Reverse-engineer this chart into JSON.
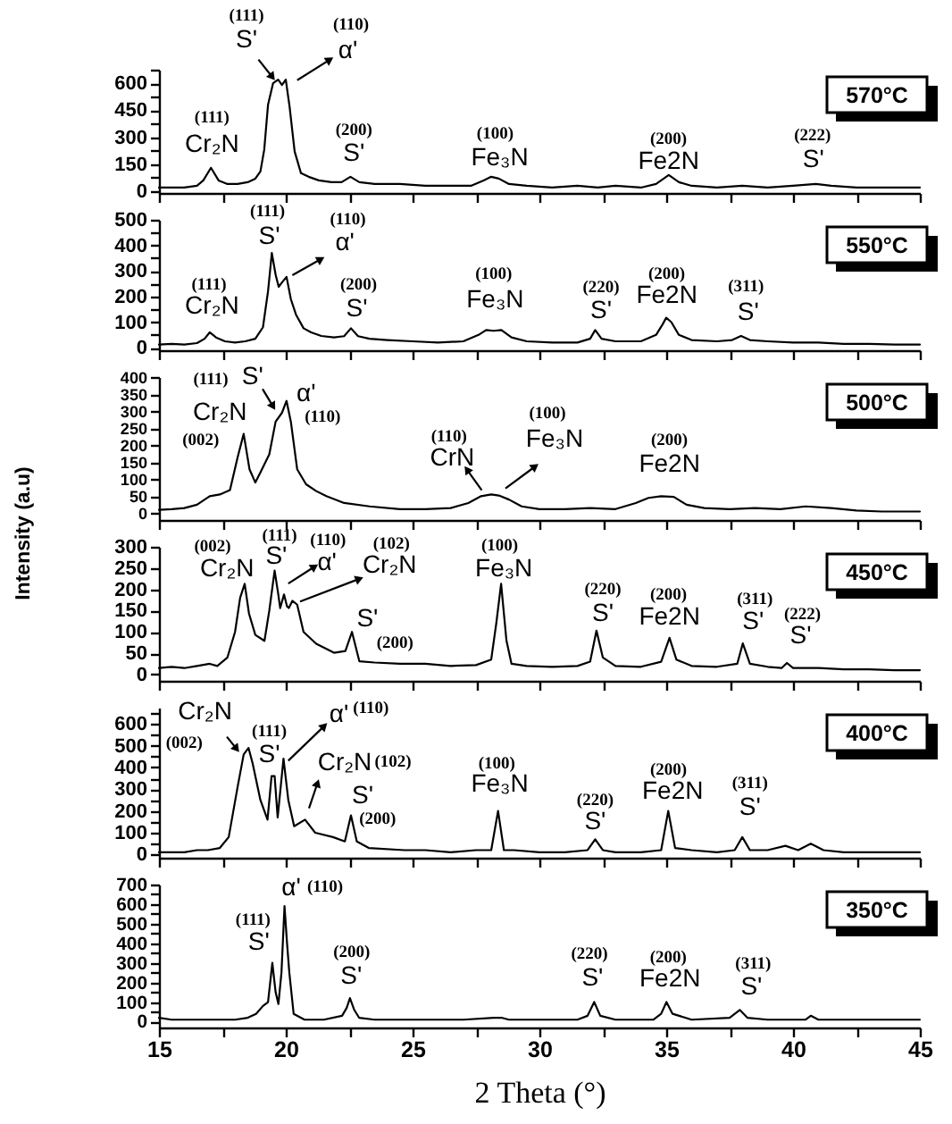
{
  "chart_data": [
    {
      "type": "line",
      "title": "570°C",
      "x": [
        15,
        15.5,
        16,
        16.5,
        16.75,
        17.05,
        17.35,
        17.7,
        18.1,
        18.5,
        18.8,
        19.0,
        19.15,
        19.3,
        19.5,
        19.7,
        19.85,
        20.0,
        20.15,
        20.35,
        20.6,
        20.9,
        21.3,
        21.8,
        22.2,
        22.55,
        22.9,
        23.5,
        24.5,
        25.5,
        26.5,
        27.3,
        27.8,
        28.1,
        28.4,
        28.8,
        29.5,
        30.5,
        31.5,
        32.3,
        33,
        34,
        34.6,
        35.1,
        35.5,
        36,
        37,
        38,
        39,
        40,
        40.9,
        41.5,
        42.5,
        43.5,
        44.5,
        45
      ],
      "series": [
        {
          "color": "#000000",
          "values": [
            20,
            20,
            20,
            30,
            60,
            130,
            60,
            40,
            40,
            50,
            70,
            110,
            230,
            480,
            600,
            620,
            590,
            620,
            470,
            220,
            100,
            80,
            60,
            50,
            50,
            80,
            50,
            40,
            40,
            30,
            30,
            30,
            60,
            80,
            70,
            40,
            30,
            20,
            30,
            20,
            30,
            20,
            40,
            90,
            50,
            30,
            20,
            30,
            20,
            30,
            40,
            30,
            20,
            20,
            20,
            20
          ]
        }
      ],
      "xlim": [
        15,
        45
      ],
      "xticks": [
        15,
        {
          "value": 17.5,
          "label": null
        },
        20,
        {
          "value": 22.5,
          "label": null
        },
        25,
        {
          "value": 27.5,
          "label": null
        },
        30,
        {
          "value": 32.5,
          "label": null
        },
        35,
        {
          "value": 37.5,
          "label": null
        },
        40,
        {
          "value": 42.5,
          "label": null
        },
        45
      ],
      "ylim": [
        -10,
        675
      ],
      "yticks": [
        0,
        {
          "value": 75,
          "label": null
        },
        150,
        {
          "value": 225,
          "label": null
        },
        300,
        {
          "value": 375,
          "label": null
        },
        450,
        {
          "value": 525,
          "label": null
        },
        600,
        {
          "value": 675,
          "label": null
        }
      ],
      "tick_labels": "y",
      "line_style": "solid",
      "annotations": [
        "(111)",
        "S'",
        "(110)",
        "α'",
        "(111)",
        "Cr₂N",
        "(200)",
        "S'",
        "(100)",
        "Fe₃N",
        "(200)",
        "Fe2N",
        "(222)",
        "S'"
      ]
    },
    {
      "type": "line",
      "title": "550°C",
      "x": [
        15,
        15.5,
        16,
        16.5,
        16.8,
        17.0,
        17.25,
        17.6,
        18.0,
        18.4,
        18.8,
        19.1,
        19.3,
        19.45,
        19.6,
        19.72,
        19.85,
        20.03,
        20.2,
        20.4,
        20.7,
        21.0,
        21.4,
        21.9,
        22.3,
        22.57,
        22.85,
        23.3,
        24,
        25,
        26,
        27,
        27.6,
        27.9,
        28.2,
        28.5,
        28.9,
        29.5,
        30.5,
        31.5,
        32.0,
        32.2,
        32.45,
        33,
        34,
        34.6,
        34.85,
        35.0,
        35.2,
        35.5,
        36,
        37,
        37.6,
        37.95,
        38.3,
        39,
        40,
        41,
        42,
        43,
        44,
        45
      ],
      "series": [
        {
          "color": "#000000",
          "values": [
            12,
            15,
            12,
            18,
            35,
            60,
            40,
            25,
            20,
            25,
            35,
            80,
            220,
            370,
            285,
            238,
            255,
            277,
            190,
            130,
            76,
            60,
            46,
            40,
            45,
            76,
            45,
            35,
            30,
            25,
            20,
            25,
            50,
            69,
            66,
            69,
            40,
            25,
            20,
            20,
            35,
            69,
            35,
            25,
            25,
            50,
            90,
            117,
            100,
            50,
            30,
            25,
            30,
            46,
            30,
            25,
            20,
            20,
            15,
            15,
            12,
            12
          ]
        }
      ],
      "xlim": [
        15,
        45
      ],
      "xticks": [
        15,
        {
          "value": 17.5,
          "label": null
        },
        20,
        {
          "value": 22.5,
          "label": null
        },
        25,
        {
          "value": 27.5,
          "label": null
        },
        30,
        {
          "value": 32.5,
          "label": null
        },
        35,
        {
          "value": 37.5,
          "label": null
        },
        40,
        {
          "value": 42.5,
          "label": null
        },
        45
      ],
      "ylim": [
        -10,
        500
      ],
      "yticks": [
        0,
        {
          "value": 50,
          "label": null
        },
        100,
        {
          "value": 150,
          "label": null
        },
        200,
        {
          "value": 250,
          "label": null
        },
        300,
        {
          "value": 350,
          "label": null
        },
        400,
        {
          "value": 450,
          "label": null
        },
        500
      ],
      "tick_labels": "y",
      "line_style": "solid",
      "annotations": [
        "(111)",
        "S'",
        "(110)",
        "α'",
        "(111)",
        "Cr₂N",
        "(200)",
        "S'",
        "(100)",
        "Fe₃N",
        "(220)",
        "S'",
        "(200)",
        "Fe2N",
        "(311)",
        "S'"
      ]
    },
    {
      "type": "line",
      "title": "500°C",
      "x": [
        15,
        15.5,
        16,
        16.5,
        17,
        17.4,
        17.8,
        18.1,
        18.34,
        18.57,
        18.8,
        19.0,
        19.35,
        19.6,
        19.85,
        20.03,
        20.2,
        20.45,
        20.8,
        21.2,
        21.6,
        22.3,
        23.3,
        24.5,
        25.5,
        26.5,
        27.2,
        27.7,
        28.1,
        28.4,
        28.8,
        29.3,
        30,
        31,
        32,
        33,
        33.8,
        34.3,
        34.8,
        35.3,
        35.8,
        36.5,
        37.5,
        38.5,
        39.5,
        40.5,
        41.5,
        42.5,
        43.5,
        44.5,
        45
      ],
      "series": [
        {
          "color": "#000000",
          "values": [
            10,
            12,
            15,
            25,
            50,
            55,
            68,
            164,
            233,
            129,
            90,
            120,
            173,
            269,
            295,
            330,
            269,
            129,
            85,
            65,
            50,
            30,
            20,
            12,
            12,
            15,
            30,
            50,
            55,
            52,
            40,
            20,
            12,
            12,
            15,
            12,
            30,
            45,
            50,
            48,
            25,
            15,
            12,
            15,
            12,
            20,
            15,
            8,
            5,
            5,
            5
          ]
        }
      ],
      "xlim": [
        15,
        45
      ],
      "xticks": [
        15,
        {
          "value": 17.5,
          "label": null
        },
        20,
        {
          "value": 22.5,
          "label": null
        },
        25,
        {
          "value": 27.5,
          "label": null
        },
        30,
        {
          "value": 32.5,
          "label": null
        },
        35,
        {
          "value": 37.5,
          "label": null
        },
        40,
        {
          "value": 42.5,
          "label": null
        },
        45
      ],
      "ylim": [
        -20,
        400
      ],
      "yticks": [
        0,
        50,
        100,
        150,
        200,
        250,
        300,
        350,
        400
      ],
      "tick_labels": "y",
      "line_style": "solid",
      "annotations": [
        "(111)",
        "S'",
        "(110)",
        "α'",
        "(002)",
        "Cr₂N",
        "(110)",
        "CrN",
        "(100)",
        "Fe₃N",
        "(200)",
        "Fe2N"
      ]
    },
    {
      "type": "line",
      "title": "450°C",
      "ylabel": "Intensity (a.u)",
      "x": [
        15,
        15.5,
        16,
        16.5,
        17.0,
        17.3,
        17.7,
        18.0,
        18.2,
        18.38,
        18.55,
        18.8,
        19.16,
        19.35,
        19.56,
        19.7,
        19.78,
        19.93,
        20.05,
        20.12,
        20.26,
        20.45,
        20.7,
        21.2,
        21.9,
        22.35,
        22.61,
        22.9,
        23.5,
        24.5,
        25.5,
        26.5,
        27.5,
        28.1,
        28.3,
        28.49,
        28.7,
        28.9,
        29.5,
        30.5,
        31.5,
        32.0,
        32.25,
        32.5,
        33,
        34,
        34.8,
        35.13,
        35.4,
        36,
        37,
        37.8,
        38.02,
        38.3,
        39,
        39.55,
        39.76,
        40,
        41,
        42,
        43,
        44,
        45
      ],
      "series": [
        {
          "color": "#000000",
          "values": [
            15,
            18,
            15,
            20,
            25,
            20,
            40,
            100,
            180,
            213,
            143,
            93,
            79,
            150,
            244,
            190,
            156,
            188,
            160,
            156,
            173,
            164,
            100,
            72,
            51,
            55,
            100,
            31,
            28,
            25,
            25,
            20,
            22,
            35,
            120,
            213,
            80,
            25,
            20,
            18,
            20,
            30,
            103,
            40,
            20,
            18,
            30,
            86,
            35,
            20,
            18,
            25,
            73,
            25,
            18,
            15,
            27,
            15,
            15,
            12,
            12,
            10,
            10
          ]
        }
      ],
      "xlim": [
        15,
        45
      ],
      "xticks": [
        15,
        {
          "value": 17.5,
          "label": null
        },
        20,
        {
          "value": 22.5,
          "label": null
        },
        25,
        {
          "value": 27.5,
          "label": null
        },
        30,
        {
          "value": 32.5,
          "label": null
        },
        35,
        {
          "value": 37.5,
          "label": null
        },
        40,
        {
          "value": 42.5,
          "label": null
        },
        45
      ],
      "ylim": [
        -15,
        300
      ],
      "yticks": [
        0,
        50,
        100,
        150,
        200,
        250,
        300
      ],
      "tick_labels": "y",
      "line_style": "solid",
      "annotations": [
        "(002)",
        "Cr₂N",
        "(111)",
        "S'",
        "(110)",
        "α'",
        "(102)",
        "Cr₂N",
        "(100)",
        "Fe₃N",
        "(200)",
        "S'",
        "(220)",
        "S'",
        "(200)",
        "Fe2N",
        "(311)",
        "S'",
        "(222)",
        "S'"
      ]
    },
    {
      "type": "line",
      "title": "400°C",
      "x": [
        15,
        15.5,
        16,
        16.5,
        16.93,
        17.4,
        17.75,
        18.1,
        18.34,
        18.53,
        18.69,
        19.0,
        19.28,
        19.44,
        19.56,
        19.68,
        19.91,
        20.1,
        20.33,
        20.76,
        21.16,
        21.86,
        22.33,
        22.57,
        22.8,
        23.27,
        24.68,
        25.5,
        26.5,
        27.5,
        28.1,
        28.37,
        28.6,
        29,
        30,
        31,
        31.9,
        32.2,
        32.5,
        33,
        34,
        34.8,
        35.08,
        35.35,
        36,
        37,
        37.7,
        38.0,
        38.3,
        39,
        39.7,
        40.2,
        40.7,
        41.2,
        42,
        43,
        44,
        45
      ],
      "series": [
        {
          "color": "#000000",
          "values": [
            10,
            10,
            10,
            20,
            20,
            30,
            80,
            310,
            460,
            490,
            420,
            250,
            160,
            360,
            360,
            170,
            440,
            250,
            130,
            160,
            100,
            80,
            60,
            180,
            60,
            30,
            20,
            20,
            10,
            20,
            20,
            200,
            20,
            20,
            10,
            10,
            20,
            70,
            20,
            10,
            10,
            20,
            200,
            30,
            20,
            10,
            20,
            80,
            20,
            20,
            40,
            20,
            50,
            20,
            10,
            10,
            10,
            10
          ]
        }
      ],
      "xlim": [
        15,
        45
      ],
      "xticks": [
        15,
        {
          "value": 17.5,
          "label": null
        },
        20,
        {
          "value": 22.5,
          "label": null
        },
        25,
        {
          "value": 27.5,
          "label": null
        },
        30,
        {
          "value": 32.5,
          "label": null
        },
        35,
        {
          "value": 37.5,
          "label": null
        },
        40,
        {
          "value": 42.5,
          "label": null
        },
        45
      ],
      "ylim": [
        -15,
        675
      ],
      "yticks": [
        0,
        {
          "value": 50,
          "label": null
        },
        100,
        {
          "value": 150,
          "label": null
        },
        200,
        {
          "value": 250,
          "label": null
        },
        300,
        {
          "value": 350,
          "label": null
        },
        400,
        {
          "value": 450,
          "label": null
        },
        500,
        {
          "value": 550,
          "label": null
        },
        600,
        {
          "value": 650,
          "label": null
        }
      ],
      "tick_labels": "y",
      "line_style": "solid",
      "annotations": [
        "(002)",
        "Cr₂N",
        "(111)",
        "S'",
        "(110)",
        "α'",
        "(102)",
        "Cr₂N",
        "(200)",
        "S'",
        "(100)",
        "Fe₃N",
        "(220)",
        "S'",
        "(200)",
        "Fe2N",
        "(311)",
        "S'"
      ]
    },
    {
      "type": "line",
      "title": "350°C",
      "xlabel": "2 Theta (°)",
      "x": [
        15,
        15.5,
        16,
        17,
        18,
        18.5,
        18.83,
        19.1,
        19.3,
        19.47,
        19.6,
        19.71,
        19.83,
        19.95,
        20.05,
        20.14,
        20.31,
        20.74,
        21.5,
        22.22,
        22.4,
        22.53,
        22.7,
        22.89,
        23.5,
        25,
        27,
        28.2,
        28.5,
        28.8,
        30,
        31.5,
        31.9,
        32.16,
        32.4,
        33,
        34.5,
        34.8,
        35.01,
        35.25,
        36,
        37.5,
        37.9,
        38.2,
        39,
        40.5,
        40.7,
        41,
        42,
        43.5,
        45
      ],
      "series": [
        {
          "color": "#000000",
          "values": [
            20,
            10,
            10,
            10,
            10,
            20,
            40,
            80,
            100,
            300,
            150,
            90,
            250,
            590,
            400,
            250,
            40,
            10,
            10,
            30,
            70,
            120,
            60,
            20,
            10,
            10,
            10,
            20,
            20,
            10,
            10,
            10,
            30,
            100,
            30,
            10,
            10,
            40,
            100,
            40,
            10,
            20,
            60,
            20,
            10,
            10,
            30,
            10,
            10,
            10,
            10
          ]
        }
      ],
      "xlim": [
        15,
        45
      ],
      "xticks": [
        15,
        {
          "value": 17.5,
          "label": null
        },
        20,
        {
          "value": 22.5,
          "label": null
        },
        25,
        {
          "value": 27.5,
          "label": null
        },
        30,
        {
          "value": 32.5,
          "label": null
        },
        35,
        {
          "value": 37.5,
          "label": null
        },
        40,
        {
          "value": 42.5,
          "label": null
        },
        45
      ],
      "ylim": [
        -30,
        700
      ],
      "yticks": [
        0,
        {
          "value": 50,
          "label": null
        },
        100,
        {
          "value": 150,
          "label": null
        },
        200,
        {
          "value": 250,
          "label": null
        },
        300,
        {
          "value": 350,
          "label": null
        },
        400,
        {
          "value": 450,
          "label": null
        },
        500,
        {
          "value": 550,
          "label": null
        },
        600,
        {
          "value": 650,
          "label": null
        },
        700
      ],
      "line_style": "solid",
      "annotations": [
        "(111)",
        "S'",
        "(110)",
        "α'",
        "(200)",
        "S'",
        "(220)",
        "S'",
        "(200)",
        "Fe2N",
        "(311)",
        "S'"
      ]
    }
  ]
}
